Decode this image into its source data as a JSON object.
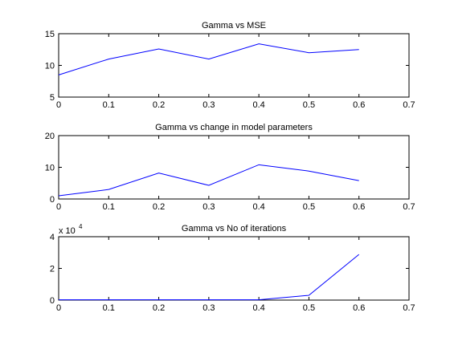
{
  "chart_data": [
    {
      "type": "line",
      "title": "Gamma vs MSE",
      "xlabel": "",
      "ylabel": "",
      "xlim": [
        0,
        0.7
      ],
      "ylim": [
        5,
        15
      ],
      "xticks": [
        "0",
        "0.1",
        "0.2",
        "0.3",
        "0.4",
        "0.5",
        "0.6",
        "0.7"
      ],
      "yticks": [
        "5",
        "10",
        "15"
      ],
      "grid": false,
      "line_color": "#0000ff",
      "series": [
        {
          "x": [
            0,
            0.1,
            0.2,
            0.3,
            0.4,
            0.5,
            0.6
          ],
          "y": [
            8.5,
            11.0,
            12.6,
            11.0,
            13.4,
            12.0,
            12.5
          ]
        }
      ]
    },
    {
      "type": "line",
      "title": "Gamma vs change in model parameters",
      "xlabel": "",
      "ylabel": "",
      "xlim": [
        0,
        0.7
      ],
      "ylim": [
        0,
        20
      ],
      "xticks": [
        "0",
        "0.1",
        "0.2",
        "0.3",
        "0.4",
        "0.5",
        "0.6",
        "0.7"
      ],
      "yticks": [
        "0",
        "10",
        "20"
      ],
      "grid": false,
      "line_color": "#0000ff",
      "series": [
        {
          "x": [
            0,
            0.1,
            0.2,
            0.3,
            0.4,
            0.5,
            0.6
          ],
          "y": [
            1.0,
            3.0,
            8.2,
            4.3,
            10.8,
            8.8,
            5.8
          ]
        }
      ]
    },
    {
      "type": "line",
      "title": "Gamma vs No of iterations",
      "xlabel": "",
      "ylabel": "",
      "xlim": [
        0,
        0.7
      ],
      "ylim": [
        0,
        40000
      ],
      "xticks": [
        "0",
        "0.1",
        "0.2",
        "0.3",
        "0.4",
        "0.5",
        "0.6",
        "0.7"
      ],
      "yticks": [
        "0",
        "2",
        "4"
      ],
      "y_exponent_label": {
        "base": "x 10",
        "power": "4"
      },
      "grid": false,
      "line_color": "#0000ff",
      "series": [
        {
          "x": [
            0,
            0.1,
            0.2,
            0.3,
            0.4,
            0.5,
            0.6
          ],
          "y": [
            200,
            200,
            200,
            200,
            200,
            3000,
            28800
          ]
        }
      ]
    }
  ]
}
